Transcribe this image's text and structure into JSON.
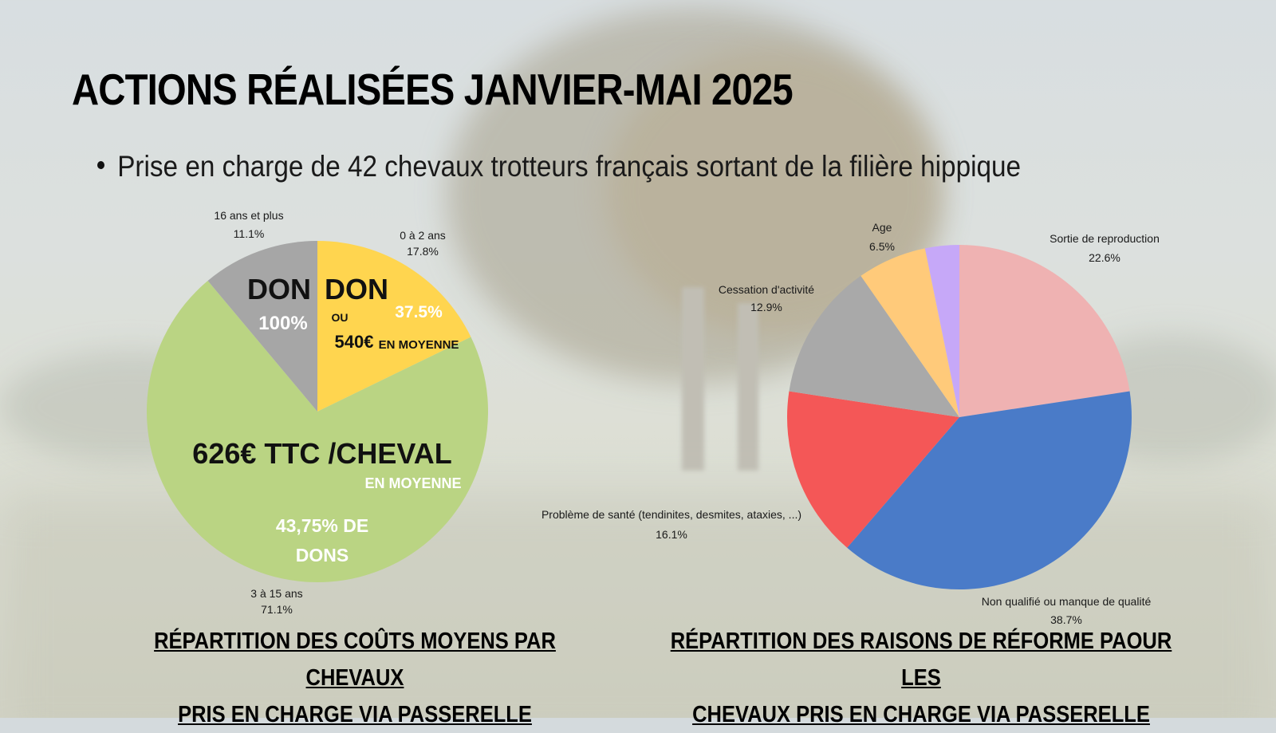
{
  "title": "ACTIONS RÉALISÉES JANVIER-MAI 2025",
  "bullet": "Prise en charge de 42 chevaux trotteurs français sortant de la filière hippique",
  "chart_data": [
    {
      "type": "pie",
      "caption_line1": "RÉPARTITION DES COÛTS MOYENS PAR CHEVAUX",
      "caption_line2": "PRIS EN CHARGE VIA PASSERELLE",
      "slices": [
        {
          "label": "0 à 2 ans",
          "pct_text": "17.8%",
          "value": 17.8,
          "color": "#FFD54F"
        },
        {
          "label": "3 à 15 ans",
          "pct_text": "71.1%",
          "value": 71.1,
          "color": "#BAD483"
        },
        {
          "label": "16 ans et plus",
          "pct_text": "11.1%",
          "value": 11.1,
          "color": "#A6A6A6"
        }
      ],
      "annotations": {
        "don_left": "DON",
        "pct_left": "100%",
        "don_right": "DON",
        "pct_right": "37.5%",
        "ou": "OU",
        "amount_right": "540€",
        "moyenne_right": "EN MOYENNE",
        "center_big": "626€ TTC /CHEVAL",
        "center_small": "EN MOYENNE",
        "bottom_line1": "43,75% DE",
        "bottom_line2": "DONS"
      }
    },
    {
      "type": "pie",
      "caption_line1": "RÉPARTITION DES RAISONS DE RÉFORME PAOUR LES",
      "caption_line2": "CHEVAUX PRIS EN CHARGE VIA PASSERELLE",
      "slices": [
        {
          "label": "Sortie de reproduction",
          "pct_text": "22.6%",
          "value": 22.6,
          "color": "#EFB2B2"
        },
        {
          "label": "Non qualifié ou manque de qualité",
          "pct_text": "38.7%",
          "value": 38.7,
          "color": "#4A7BC8"
        },
        {
          "label": "Problème de santé (tendinites, desmites, ataxies, ...)",
          "pct_text": "16.1%",
          "value": 16.1,
          "color": "#F45757"
        },
        {
          "label": "Cessation d'activité",
          "pct_text": "12.9%",
          "value": 12.9,
          "color": "#A9A9A9"
        },
        {
          "label": "Age",
          "pct_text": "6.5%",
          "value": 6.5,
          "color": "#FFCA7A"
        },
        {
          "label": "",
          "pct_text": "",
          "value": 3.2,
          "color": "#C6A8F8"
        }
      ]
    }
  ]
}
